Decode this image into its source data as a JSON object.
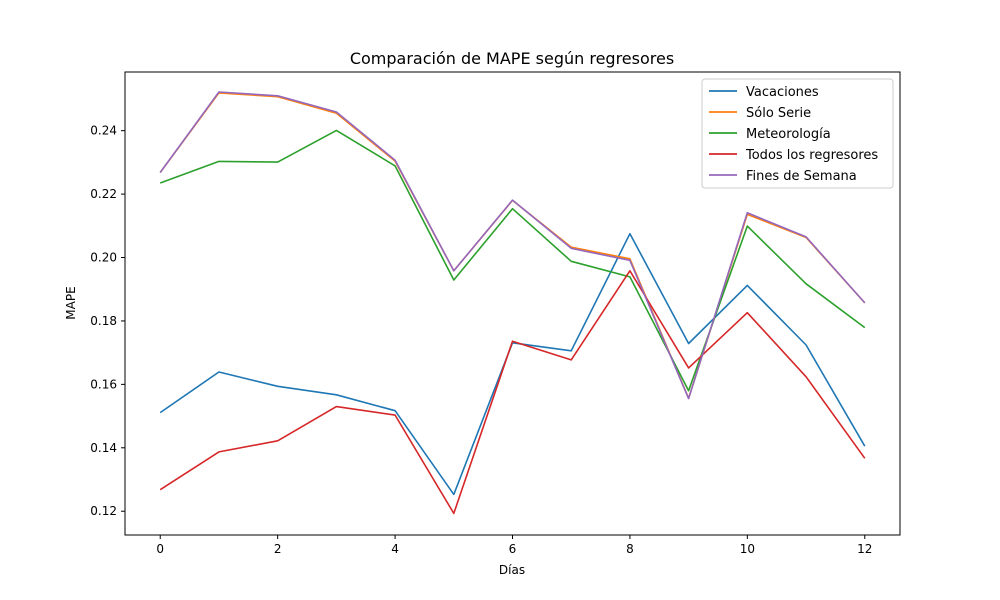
{
  "chart_data": {
    "type": "line",
    "title": "Comparación de MAPE según regresores",
    "xlabel": "Días",
    "ylabel": "MAPE",
    "x": [
      0,
      1,
      2,
      3,
      4,
      5,
      6,
      7,
      8,
      9,
      10,
      11,
      12
    ],
    "xlim": [
      -0.6,
      12.6
    ],
    "ylim": [
      0.1125,
      0.2585
    ],
    "xticks": [
      0,
      2,
      4,
      6,
      8,
      10,
      12
    ],
    "yticks": [
      0.12,
      0.14,
      0.16,
      0.18,
      0.2,
      0.22,
      0.24
    ],
    "ytick_labels": [
      "0.12",
      "0.14",
      "0.16",
      "0.18",
      "0.20",
      "0.22",
      "0.24"
    ],
    "grid": false,
    "legend_position": "top-right",
    "series": [
      {
        "name": "Vacaciones",
        "color": "#1f77b4",
        "values": [
          0.1511,
          0.1639,
          0.1594,
          0.1567,
          0.1517,
          0.1253,
          0.1731,
          0.1706,
          0.2075,
          0.1729,
          0.1912,
          0.1724,
          0.1405
        ]
      },
      {
        "name": "Sólo Serie",
        "color": "#ff7f0e",
        "values": [
          0.2268,
          0.2519,
          0.2507,
          0.2455,
          0.2304,
          0.1958,
          0.218,
          0.2033,
          0.1996,
          0.1556,
          0.2136,
          0.2063,
          0.1857
        ]
      },
      {
        "name": "Meteorología",
        "color": "#2ca02c",
        "values": [
          0.2235,
          0.2303,
          0.2301,
          0.2401,
          0.2289,
          0.1929,
          0.2154,
          0.1988,
          0.1939,
          0.158,
          0.2099,
          0.1917,
          0.1779
        ]
      },
      {
        "name": "Todos los regresores",
        "color": "#d62728",
        "values": [
          0.1268,
          0.1387,
          0.1422,
          0.153,
          0.1503,
          0.1193,
          0.1736,
          0.1677,
          0.1958,
          0.1652,
          0.1826,
          0.1624,
          0.1367
        ]
      },
      {
        "name": "Fines de Semana",
        "color": "#9467bd",
        "values": [
          0.2268,
          0.2522,
          0.251,
          0.2459,
          0.2307,
          0.1958,
          0.2181,
          0.2029,
          0.1991,
          0.1555,
          0.2141,
          0.2065,
          0.1857
        ]
      }
    ]
  }
}
